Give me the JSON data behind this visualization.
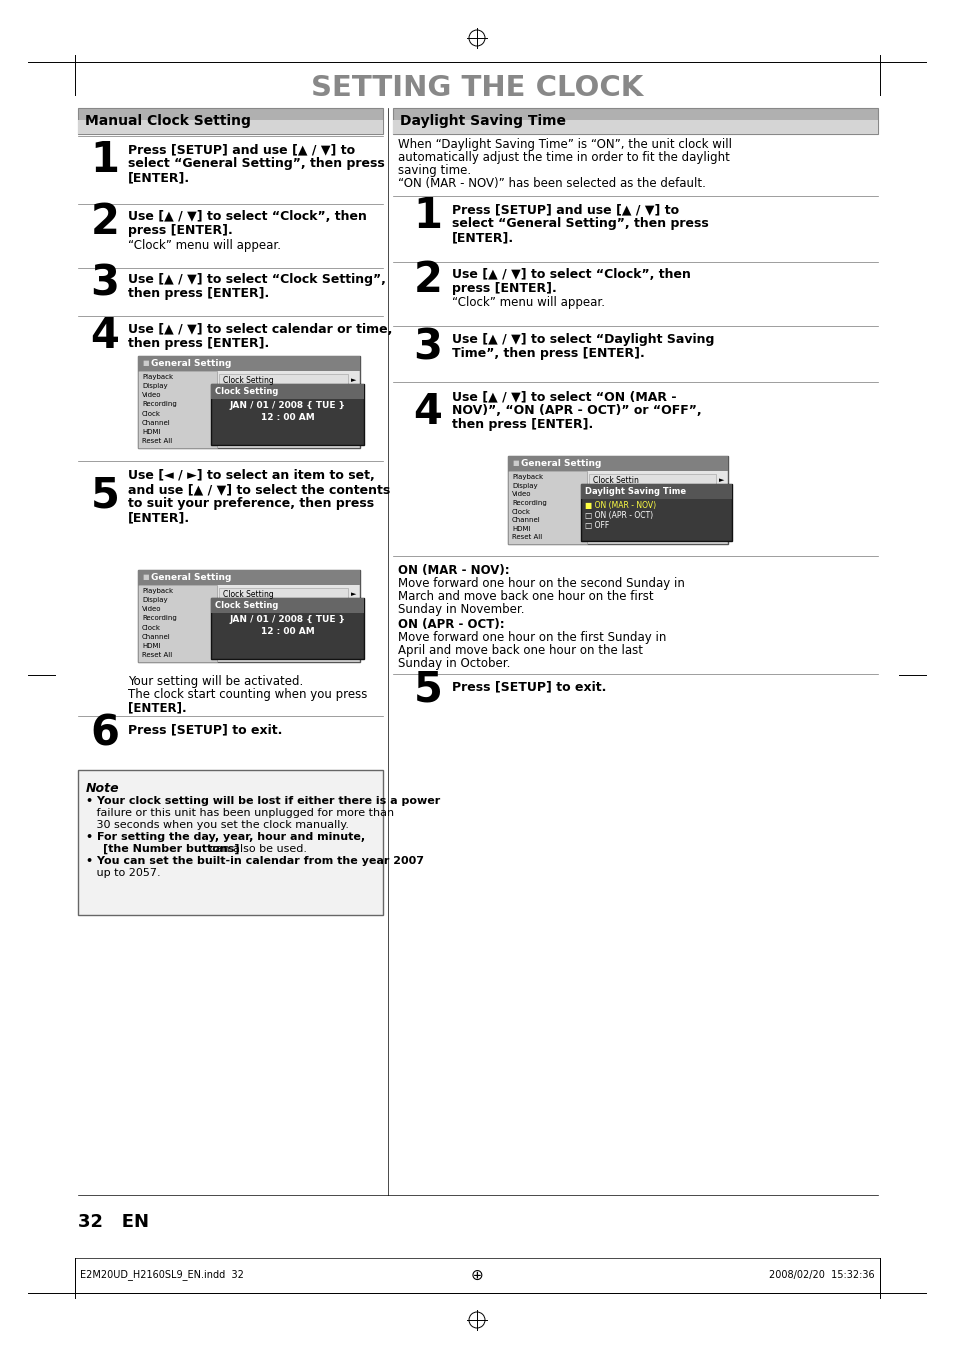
{
  "bg_color": "#ffffff",
  "title": "SETTING THE CLOCK",
  "title_color": "#888888",
  "left_header": "Manual Clock Setting",
  "right_header": "Daylight Saving Time",
  "footer_left": "E2M20UD_H2160SL9_EN.indd  32",
  "footer_center": "⊕",
  "footer_right": "2008/02/20  15:32:36",
  "page_number": "32   EN"
}
